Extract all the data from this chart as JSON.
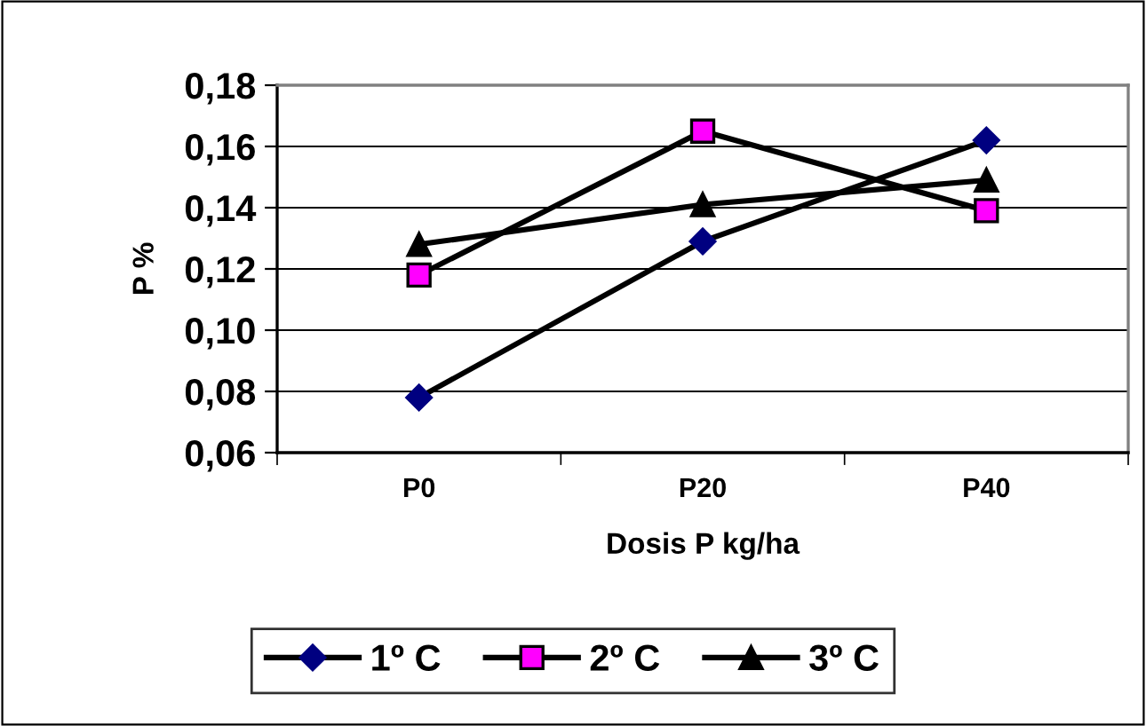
{
  "chart_data": {
    "type": "line",
    "xlabel": "Dosis P kg/ha",
    "ylabel": "P %",
    "categories": [
      "P0",
      "P20",
      "P40"
    ],
    "series": [
      {
        "name": "1º C",
        "color": "#000080",
        "marker": "diamond",
        "values": [
          0.078,
          0.129,
          0.162
        ]
      },
      {
        "name": "2º C",
        "color": "#ff00ff",
        "marker": "square",
        "values": [
          0.118,
          0.165,
          0.139
        ]
      },
      {
        "name": "3º C",
        "color": "#000000",
        "marker": "triangle",
        "values": [
          0.128,
          0.141,
          0.149
        ]
      }
    ],
    "ylim": [
      0.06,
      0.18
    ],
    "yticks": [
      {
        "value": 0.06,
        "label": "0,06"
      },
      {
        "value": 0.08,
        "label": "0,08"
      },
      {
        "value": 0.1,
        "label": "0,10"
      },
      {
        "value": 0.12,
        "label": "0,12"
      },
      {
        "value": 0.14,
        "label": "0,14"
      },
      {
        "value": 0.16,
        "label": "0,16"
      },
      {
        "value": 0.18,
        "label": "0,18"
      }
    ],
    "grid": "y",
    "legend": "bottom",
    "line_style": "solid"
  }
}
